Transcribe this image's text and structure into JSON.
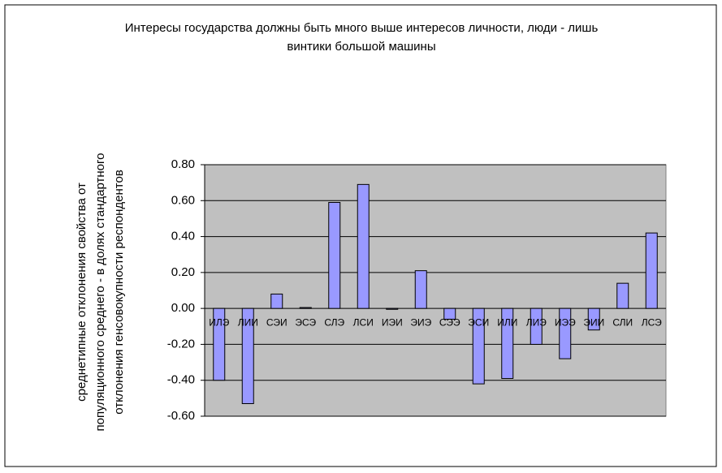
{
  "chart_data": {
    "type": "bar",
    "title": [
      "Интересы государства должны быть много выше интересов личности, люди - лишь",
      "винтики большой машины"
    ],
    "y_label": [
      "среднетипные отклонения свойства от",
      "популяционного среднего - в долях стандартного",
      "отклонения генсовокупности респондентов"
    ],
    "categories": [
      "ИЛЭ",
      "ЛИИ",
      "СЭИ",
      "ЭСЭ",
      "СЛЭ",
      "ЛСИ",
      "ИЭИ",
      "ЭИЭ",
      "СЭЭ",
      "ЭСИ",
      "ИЛИ",
      "ЛИЭ",
      "ИЭЭ",
      "ЭИИ",
      "СЛИ",
      "ЛСЭ"
    ],
    "values": [
      -0.4,
      -0.53,
      0.08,
      0.005,
      0.59,
      0.69,
      -0.005,
      0.21,
      -0.06,
      -0.42,
      -0.39,
      -0.2,
      -0.28,
      -0.12,
      0.14,
      0.42
    ],
    "color": "#9999ff",
    "ylim": [
      -0.6,
      0.8
    ],
    "yticks": [
      {
        "value": -0.6,
        "label": "-0.60"
      },
      {
        "value": -0.4,
        "label": "-0.40"
      },
      {
        "value": -0.2,
        "label": "-0.20"
      },
      {
        "value": 0,
        "label": "0.00"
      },
      {
        "value": 0.2,
        "label": "0.20"
      },
      {
        "value": 0.4,
        "label": "0.40"
      },
      {
        "value": 0.6,
        "label": "0.60"
      },
      {
        "value": 0.8,
        "label": "0.80"
      }
    ],
    "grid": true
  }
}
